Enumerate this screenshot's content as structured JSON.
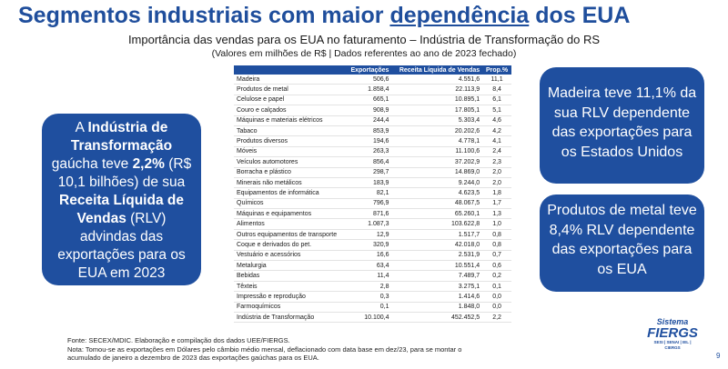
{
  "header": {
    "title_pre": "Segmentos industriais com maior ",
    "title_u": "dependência",
    "title_post": " dos EUA",
    "subtitle": "Importância das vendas para os EUA no faturamento – Indústria de Transformação do RS",
    "subnote": "(Valores em milhões de R$ | Dados referentes ao ano de 2023 fechado)"
  },
  "table": {
    "headers": [
      "",
      "Exportações",
      "Receita Líquida de Vendas",
      "Prop.%"
    ],
    "rows": [
      [
        "Madeira",
        "506,6",
        "4.551,6",
        "11,1"
      ],
      [
        "Produtos de metal",
        "1.858,4",
        "22.113,9",
        "8,4"
      ],
      [
        "Celulose e papel",
        "665,1",
        "10.895,1",
        "6,1"
      ],
      [
        "Couro e calçados",
        "908,9",
        "17.805,1",
        "5,1"
      ],
      [
        "Máquinas e materiais elétricos",
        "244,4",
        "5.303,4",
        "4,6"
      ],
      [
        "Tabaco",
        "853,9",
        "20.202,6",
        "4,2"
      ],
      [
        "Produtos diversos",
        "194,6",
        "4.778,1",
        "4,1"
      ],
      [
        "Móveis",
        "263,3",
        "11.100,6",
        "2,4"
      ],
      [
        "Veículos automotores",
        "856,4",
        "37.202,9",
        "2,3"
      ],
      [
        "Borracha e plástico",
        "298,7",
        "14.869,0",
        "2,0"
      ],
      [
        "Minerais não metálicos",
        "183,9",
        "9.244,0",
        "2,0"
      ],
      [
        "Equipamentos de informática",
        "82,1",
        "4.623,5",
        "1,8"
      ],
      [
        "Químicos",
        "796,9",
        "48.067,5",
        "1,7"
      ],
      [
        "Máquinas e equipamentos",
        "871,6",
        "65.260,1",
        "1,3"
      ],
      [
        "Alimentos",
        "1.087,3",
        "103.622,8",
        "1,0"
      ],
      [
        "Outros equipamentos de transporte",
        "12,9",
        "1.517,7",
        "0,8"
      ],
      [
        "Coque e derivados do pet.",
        "320,9",
        "42.018,0",
        "0,8"
      ],
      [
        "Vestuário e acessórios",
        "16,6",
        "2.531,9",
        "0,7"
      ],
      [
        "Metalurgia",
        "63,4",
        "10.551,4",
        "0,6"
      ],
      [
        "Bebidas",
        "11,4",
        "7.489,7",
        "0,2"
      ],
      [
        "Têxteis",
        "2,8",
        "3.275,1",
        "0,1"
      ],
      [
        "Impressão e reprodução",
        "0,3",
        "1.414,6",
        "0,0"
      ],
      [
        "Farmoquímicos",
        "0,1",
        "1.848,0",
        "0,0"
      ]
    ],
    "total": [
      "Indústria de Transformação",
      "10.100,4",
      "452.452,5",
      "2,2"
    ]
  },
  "left_bubble": {
    "p1": "A ",
    "b1": "Indústria de Transformação",
    "p2": " gaúcha teve ",
    "b2": "2,2%",
    "p3": " (R$ 10,1 bilhões) de sua ",
    "b3": "Receita Líquida de Vendas",
    "p4": " (RLV) advindas das exportações para os EUA em 2023"
  },
  "right_bubble_1": "Madeira teve 11,1% da sua RLV dependente das exportações para os Estados Unidos",
  "right_bubble_2": "Produtos de metal teve 8,4% RLV dependente das exportações para os EUA",
  "footer": {
    "source": "Fonte: SECEX/MDIC. Elaboração e compilação dos dados UEE/FIERGS.",
    "note": "Nota: Tomou-se as exportações em Dólares pelo câmbio médio mensal, deflacionado com data base em dez/23, para se montar o acumulado de janeiro a dezembro de 2023 das exportações gaúchas para os EUA."
  },
  "logo": {
    "line1": "Sistema",
    "line2": "FIERGS",
    "line3": "SESI | SENAI | IEL | CIERGS"
  },
  "page_number": "9",
  "colors": {
    "brand_blue": "#1f4f9f",
    "title_blue": "#1f4e9c"
  }
}
